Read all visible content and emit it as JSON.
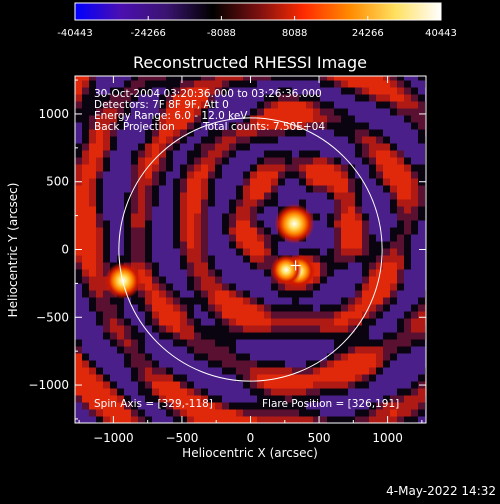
{
  "colorbar": {
    "ticks": [
      "-40443",
      "-24266",
      "-8088",
      "8088",
      "24266",
      "40443"
    ],
    "range": [
      -40443,
      40443
    ],
    "colors": [
      "#0000ff",
      "#4b0fb0",
      "#3a1470",
      "#000000",
      "#7a1010",
      "#ff2a00",
      "#ff8a00",
      "#ffe060",
      "#ffffff"
    ]
  },
  "chart_data": {
    "type": "heatmap",
    "title": "Reconstructed RHESSI Image",
    "xlabel": "Heliocentric X (arcsec)",
    "ylabel": "Heliocentric Y (arcsec)",
    "xlim": [
      -1280,
      1280
    ],
    "ylim": [
      -1280,
      1280
    ],
    "xticks": [
      -1000,
      -500,
      0,
      500,
      1000
    ],
    "yticks": [
      -1000,
      -500,
      0,
      500,
      1000
    ],
    "annotations": {
      "time_range": "30-Oct-2004 03:20:36.000 to 03:26:36.000",
      "detectors": "Detectors: 7F 8F 9F, Att 0",
      "energy_range": "Energy Range: 6.0 - 12.0 keV",
      "method": "Back Projection",
      "total_counts": "Total counts: 7.50E+04",
      "spin_axis": "Spin Axis = [329,-118]",
      "flare_position": "Flare Position = [326,191]"
    },
    "solar_limb_radius": 960,
    "sources": [
      {
        "x": 320,
        "y": 190,
        "intensity": 1.0
      },
      {
        "x": -930,
        "y": -230,
        "intensity": 0.85
      },
      {
        "x": 350,
        "y": -160,
        "intensity": 0.7
      },
      {
        "x": 260,
        "y": -150,
        "intensity": 0.55
      }
    ],
    "spin_axis_marker": {
      "x": 329,
      "y": -118
    }
  },
  "footer": {
    "date": "4-May-2022 14:32"
  }
}
